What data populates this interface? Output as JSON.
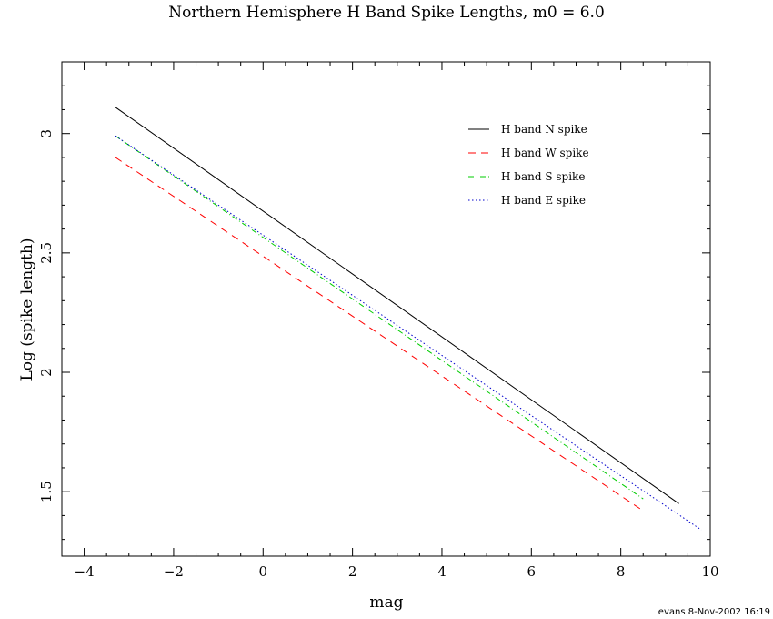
{
  "chart_data": {
    "type": "line",
    "title": "Northern Hemisphere H Band Spike Lengths, m0 = 6.0",
    "xlabel": "mag",
    "ylabel": "Log (spike length)",
    "xlim": [
      -4.5,
      10
    ],
    "ylim": [
      1.23,
      3.3
    ],
    "x_ticks": [
      -4,
      -2,
      0,
      2,
      4,
      6,
      8,
      10
    ],
    "x_tick_labels": [
      "−4",
      "−2",
      "0",
      "2",
      "4",
      "6",
      "8",
      "10"
    ],
    "y_ticks": [
      1.5,
      2,
      2.5,
      3
    ],
    "y_tick_labels": [
      "1.5",
      "2",
      "2.5",
      "3"
    ],
    "grid": false,
    "legend_position": "top-right",
    "series": [
      {
        "name": "H band N spike",
        "color": "#000000",
        "dash": "solid",
        "x": [
          -3.3,
          9.3
        ],
        "y": [
          3.11,
          1.45
        ]
      },
      {
        "name": "H band W spike",
        "color": "#ff0000",
        "dash": "dashed",
        "x": [
          -3.3,
          8.5
        ],
        "y": [
          2.9,
          1.42
        ]
      },
      {
        "name": "H band S spike",
        "color": "#00cc00",
        "dash": "dashdot",
        "x": [
          -3.3,
          8.5
        ],
        "y": [
          2.99,
          1.47
        ]
      },
      {
        "name": "H band E spike",
        "color": "#0000cc",
        "dash": "dotted",
        "x": [
          -3.3,
          9.8
        ],
        "y": [
          2.99,
          1.34
        ]
      }
    ]
  },
  "footer": {
    "stamp": "evans  8-Nov-2002 16:19"
  }
}
